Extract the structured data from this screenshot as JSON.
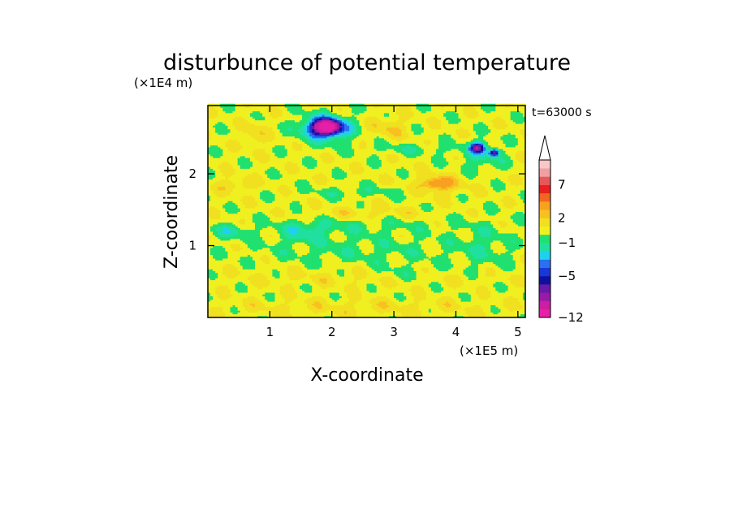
{
  "chart_data": {
    "type": "heatmap",
    "title": "disturbunce of potential temperature",
    "xlabel": "X-coordinate",
    "ylabel": "Z-coordinate",
    "x_unit": "(×1E5 m)",
    "y_unit": "(×1E4 m)",
    "time_label": "t=63000 s",
    "xlim": [
      0,
      5.12
    ],
    "ylim": [
      0,
      2.95
    ],
    "x_ticks": [
      "1",
      "2",
      "3",
      "4",
      "5"
    ],
    "y_ticks": [
      "1",
      "2"
    ],
    "colorbar": {
      "levels": [
        -12,
        -11,
        -8,
        -7,
        -6,
        -5,
        -4,
        -3,
        -2,
        -1,
        0,
        1,
        2,
        3,
        5,
        6,
        7,
        8,
        9,
        10
      ],
      "labels": [
        "-12",
        "-5",
        "-1",
        "2",
        "7"
      ],
      "colors": [
        "#e81ea8",
        "#cc1ea0",
        "#9a1aa8",
        "#6a1aa8",
        "#1010a0",
        "#1838d8",
        "#2a70f0",
        "#20d0f0",
        "#20e0a0",
        "#20e070",
        "#f0f020",
        "#f0e020",
        "#f8c020",
        "#f8a020",
        "#f06820",
        "#e82020",
        "#e85858",
        "#f0a0a0",
        "#f8c8c8"
      ],
      "extend_top": true
    },
    "background_level": 0.5,
    "features": [
      {
        "x": 1.9,
        "z": 2.65,
        "rx": 0.32,
        "rz": 0.14,
        "value": -6
      },
      {
        "x": 1.92,
        "z": 2.66,
        "rx": 0.18,
        "rz": 0.08,
        "value": -8
      },
      {
        "x": 4.35,
        "z": 2.37,
        "rx": 0.12,
        "rz": 0.07,
        "value": -6
      },
      {
        "x": 4.62,
        "z": 2.3,
        "rx": 0.08,
        "rz": 0.05,
        "value": -6
      },
      {
        "x": 3.75,
        "z": 1.85,
        "rx": 0.45,
        "rz": 0.15,
        "value": 2
      },
      {
        "x": 3.7,
        "z": 1.87,
        "rx": 0.2,
        "rz": 0.07,
        "value": 4
      },
      {
        "x": 0.75,
        "z": 2.55,
        "rx": 0.18,
        "rz": 0.18,
        "value": 2
      },
      {
        "x": 2.9,
        "z": 2.65,
        "rx": 0.3,
        "rz": 0.15,
        "value": 2
      },
      {
        "x": 0.45,
        "z": 1.85,
        "rx": 0.3,
        "rz": 0.1,
        "value": 2
      },
      {
        "x": 2.6,
        "z": 1.45,
        "rx": 0.9,
        "rz": 0.1,
        "value": 1.5
      },
      {
        "x": 2.4,
        "z": 0.95,
        "rx": 1.7,
        "rz": 0.22,
        "value": -0.5
      },
      {
        "x": 2.5,
        "z": 1.3,
        "rx": 1.3,
        "rz": 0.12,
        "value": -0.5
      },
      {
        "x": 1.55,
        "z": 1.2,
        "rx": 0.4,
        "rz": 0.14,
        "value": -1.2
      },
      {
        "x": 0.35,
        "z": 1.2,
        "rx": 0.35,
        "rz": 0.1,
        "value": -1.2
      },
      {
        "x": 2.4,
        "z": 1.75,
        "rx": 0.8,
        "rz": 0.08,
        "value": -0.6
      },
      {
        "x": 3.3,
        "z": 2.35,
        "rx": 0.7,
        "rz": 0.08,
        "value": -0.6
      },
      {
        "x": 4.4,
        "z": 2.25,
        "rx": 0.35,
        "rz": 0.2,
        "value": -1.2
      },
      {
        "x": 1.9,
        "z": 2.62,
        "rx": 0.5,
        "rz": 0.24,
        "value": -0.8
      },
      {
        "x": 2.6,
        "z": 0.55,
        "rx": 2.5,
        "rz": 0.12,
        "value": 1.2
      },
      {
        "x": 2.4,
        "z": 0.15,
        "rx": 2.5,
        "rz": 0.12,
        "value": 1.3
      },
      {
        "x": 4.45,
        "z": 1.0,
        "rx": 0.45,
        "rz": 0.35,
        "value": -0.6
      },
      {
        "x": 3.2,
        "z": 0.6,
        "rx": 0.6,
        "rz": 0.12,
        "value": -0.5
      }
    ]
  }
}
